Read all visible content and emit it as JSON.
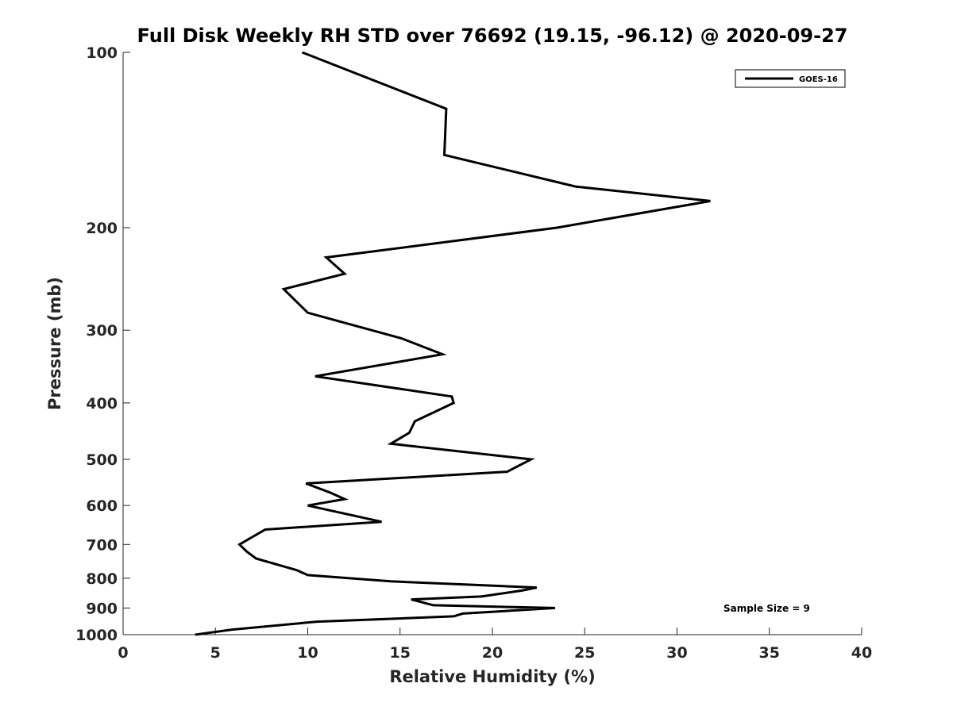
{
  "chart_data": {
    "type": "line",
    "title": "Full Disk Weekly RH STD over 76692 (19.15, -96.12) @ 2020-09-27",
    "xlabel": "Relative Humidity (%)",
    "ylabel": "Pressure (mb)",
    "xlim": [
      0,
      40
    ],
    "ylim": [
      100,
      1000
    ],
    "y_scale": "log",
    "y_reversed": true,
    "xticks": [
      "0",
      "5",
      "10",
      "15",
      "20",
      "25",
      "30",
      "35",
      "40"
    ],
    "yticks": [
      "100",
      "200",
      "300",
      "400",
      "500",
      "600",
      "700",
      "800",
      "900",
      "1000"
    ],
    "grid": false,
    "legend_position": "top-right",
    "series": [
      {
        "name": "GOES-16",
        "color": "#000000",
        "points": [
          [
            9.7,
            100
          ],
          [
            17.5,
            125
          ],
          [
            17.4,
            150
          ],
          [
            24.5,
            170
          ],
          [
            31.8,
            180
          ],
          [
            23.5,
            200
          ],
          [
            11.0,
            225
          ],
          [
            12.0,
            240
          ],
          [
            8.7,
            255
          ],
          [
            10.0,
            280
          ],
          [
            15.1,
            310
          ],
          [
            17.3,
            330
          ],
          [
            10.4,
            360
          ],
          [
            17.8,
            390
          ],
          [
            17.9,
            400
          ],
          [
            15.8,
            430
          ],
          [
            15.5,
            450
          ],
          [
            14.5,
            470
          ],
          [
            22.1,
            500
          ],
          [
            20.8,
            525
          ],
          [
            9.9,
            550
          ],
          [
            11.2,
            570
          ],
          [
            12.0,
            585
          ],
          [
            10.0,
            600
          ],
          [
            14.0,
            640
          ],
          [
            7.7,
            660
          ],
          [
            6.3,
            700
          ],
          [
            6.7,
            720
          ],
          [
            7.2,
            740
          ],
          [
            9.4,
            775
          ],
          [
            10.0,
            790
          ],
          [
            14.5,
            810
          ],
          [
            22.4,
            830
          ],
          [
            21.6,
            840
          ],
          [
            19.4,
            860
          ],
          [
            15.6,
            870
          ],
          [
            16.8,
            890
          ],
          [
            23.4,
            900
          ],
          [
            18.4,
            920
          ],
          [
            17.9,
            930
          ],
          [
            10.5,
            950
          ],
          [
            5.9,
            980
          ],
          [
            3.9,
            1000
          ]
        ]
      }
    ],
    "annotation": "Sample Size = 9"
  }
}
